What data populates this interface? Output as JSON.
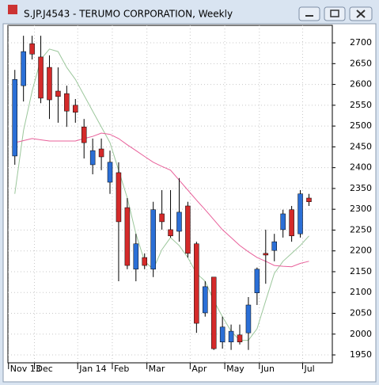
{
  "window_title": "S.JP.J4543 - TERUMO CORPORATION, Weekly",
  "chart_data": {
    "type": "candlestick",
    "categories": [
      "Nov 13",
      null,
      null,
      "Dec",
      null,
      null,
      null,
      null,
      "Jan 14",
      null,
      null,
      null,
      "Feb",
      null,
      null,
      null,
      "Mar",
      null,
      null,
      null,
      null,
      "Apr",
      null,
      null,
      null,
      "May",
      null,
      null,
      null,
      "Jun",
      null,
      null,
      null,
      null,
      "Jul"
    ],
    "open": [
      2428,
      2597,
      2698,
      2666,
      2641,
      2584,
      2578,
      2550,
      2498,
      2407,
      2445,
      2365,
      2388,
      2304,
      2156,
      2184,
      2156,
      2289,
      2251,
      2247,
      2308,
      2217,
      2051,
      2137,
      1981,
      1981,
      1998,
      2003,
      2099,
      2194,
      2201,
      2251,
      2299,
      2241,
      2327
    ],
    "high": [
      2635,
      2717,
      2717,
      2717,
      2670,
      2641,
      2597,
      2565,
      2517,
      2470,
      2470,
      2441,
      2413,
      2327,
      2241,
      2194,
      2318,
      2346,
      2346,
      2375,
      2318,
      2222,
      2127,
      2137,
      2042,
      2023,
      2023,
      2089,
      2160,
      2251,
      2241,
      2299,
      2308,
      2346,
      2337
    ],
    "low": [
      2407,
      2559,
      2660,
      2555,
      2517,
      2508,
      2498,
      2508,
      2422,
      2384,
      2394,
      2337,
      2127,
      2156,
      2127,
      2156,
      2137,
      2251,
      2232,
      2222,
      2184,
      2003,
      2042,
      1962,
      1965,
      1962,
      1975,
      1962,
      2070,
      2121,
      2175,
      2232,
      2222,
      2232,
      2308
    ],
    "close": [
      2612,
      2679,
      2673,
      2567,
      2563,
      2571,
      2536,
      2533,
      2460,
      2441,
      2426,
      2413,
      2270,
      2165,
      2217,
      2165,
      2299,
      2270,
      2236,
      2293,
      2194,
      2026,
      2114,
      1965,
      2017,
      2007,
      1981,
      2070,
      2156,
      2190,
      2222,
      2289,
      2236,
      2337,
      2318
    ],
    "up_color": "#2b6fd6",
    "down_color": "#d42a2a",
    "overlays": [
      {
        "color": "#9cc79c",
        "values": [
          2337,
          2489,
          2584,
          2660,
          2685,
          2679,
          2641,
          2612,
          2574,
          2536,
          2498,
          2460,
          2394,
          2327,
          2241,
          2175,
          2156,
          2203,
          2232,
          2213,
          2184,
          2146,
          2127,
          2080,
          2042,
          2007,
          1985,
          1985,
          2013,
          2080,
          2146,
          2175,
          2194,
          2213,
          2236
        ]
      },
      {
        "color": "#e8609a",
        "values": [
          2460,
          2465,
          2470,
          2467,
          2464,
          2464,
          2464,
          2464,
          2470,
          2475,
          2483,
          2480,
          2470,
          2455,
          2441,
          2427,
          2413,
          2403,
          2394,
          2370,
          2346,
          2322,
          2299,
          2275,
          2251,
          2232,
          2213,
          2198,
          2184,
          2175,
          2165,
          2163,
          2162,
          2170,
          2175
        ]
      }
    ],
    "ylim": [
      1931,
      2742
    ],
    "yticks": [
      1950,
      2000,
      2050,
      2100,
      2150,
      2200,
      2250,
      2300,
      2350,
      2400,
      2450,
      2500,
      2550,
      2600,
      2650,
      2700
    ],
    "grid": true
  }
}
